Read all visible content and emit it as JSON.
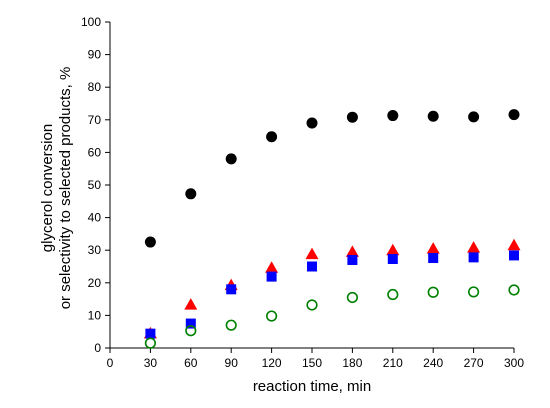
{
  "chart_data": {
    "type": "scatter",
    "title": "",
    "xlabel": "reaction time, min",
    "ylabel_lines": [
      "glycerol conversion",
      "or selectivity to selected products, %"
    ],
    "xlim": [
      0,
      300
    ],
    "ylim": [
      0,
      100
    ],
    "xticks": [
      0,
      30,
      60,
      90,
      120,
      150,
      180,
      210,
      240,
      270,
      300
    ],
    "yticks": [
      0,
      10,
      20,
      30,
      40,
      50,
      60,
      70,
      80,
      90,
      100
    ],
    "grid": false,
    "legend": "none",
    "x": [
      30,
      60,
      90,
      120,
      150,
      180,
      210,
      240,
      270,
      300
    ],
    "series": [
      {
        "marker": "filled-circle",
        "color": "#000000",
        "values": [
          32.5,
          47.3,
          58.0,
          64.8,
          69.0,
          70.8,
          71.3,
          71.1,
          70.9,
          71.6
        ]
      },
      {
        "marker": "filled-triangle",
        "color": "#ff0000",
        "values": [
          4.5,
          13.3,
          19.3,
          24.6,
          28.8,
          29.5,
          30.0,
          30.5,
          30.8,
          31.5
        ]
      },
      {
        "marker": "filled-square",
        "color": "#0000ff",
        "values": [
          4.4,
          7.5,
          18.0,
          21.9,
          25.0,
          27.0,
          27.3,
          27.6,
          27.8,
          28.4
        ]
      },
      {
        "marker": "open-circle",
        "color": "#008000",
        "values": [
          1.5,
          5.3,
          7.0,
          9.8,
          13.2,
          15.5,
          16.4,
          17.1,
          17.2,
          17.8
        ]
      }
    ]
  }
}
